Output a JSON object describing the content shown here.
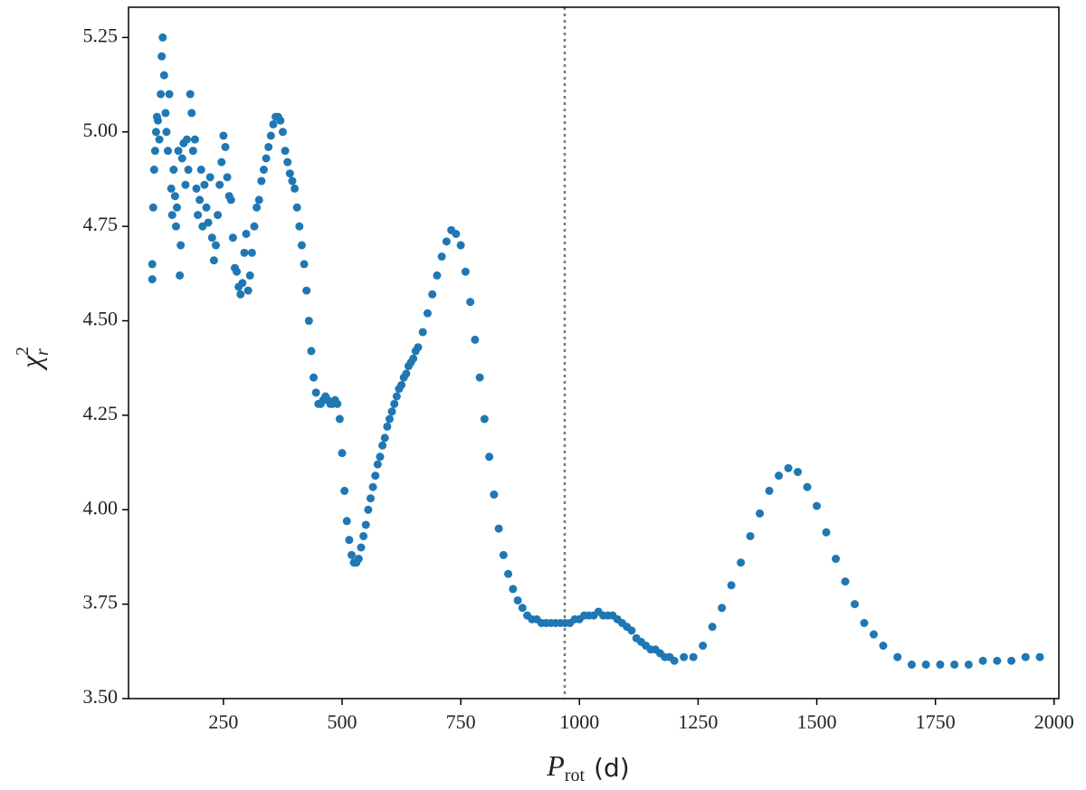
{
  "chart_data": {
    "type": "scatter",
    "xlabel": {
      "symbol": "P",
      "subscript": "rot",
      "unit": "(d)"
    },
    "ylabel": {
      "symbol": "χ",
      "superscript": "2",
      "subscript": "r"
    },
    "color": "#1f77b4",
    "vline": 969,
    "xlim": [
      50,
      2010
    ],
    "ylim": [
      3.5,
      5.33
    ],
    "xticks": [
      250,
      500,
      750,
      1000,
      1250,
      1500,
      1750,
      2000
    ],
    "yticks": [
      {
        "value": 3.5,
        "label": "3.50"
      },
      3.75,
      {
        "value": 4,
        "label": "4.00"
      },
      4.25,
      {
        "value": 4.5,
        "label": "4.50"
      },
      4.75,
      {
        "value": 5,
        "label": "5.00"
      },
      5.25
    ],
    "grid": false,
    "x": [
      100,
      100,
      102,
      104,
      106,
      108,
      110,
      112,
      115,
      118,
      120,
      122,
      125,
      128,
      130,
      133,
      136,
      140,
      142,
      145,
      148,
      150,
      152,
      155,
      158,
      160,
      163,
      166,
      170,
      173,
      176,
      180,
      183,
      186,
      190,
      193,
      196,
      200,
      203,
      206,
      210,
      214,
      218,
      222,
      226,
      230,
      234,
      238,
      242,
      246,
      250,
      254,
      258,
      262,
      266,
      270,
      274,
      278,
      282,
      286,
      290,
      294,
      298,
      302,
      306,
      310,
      315,
      320,
      325,
      330,
      335,
      340,
      345,
      350,
      355,
      360,
      365,
      370,
      375,
      380,
      385,
      390,
      395,
      400,
      405,
      410,
      415,
      420,
      425,
      430,
      435,
      440,
      445,
      450,
      455,
      460,
      465,
      470,
      475,
      480,
      485,
      490,
      495,
      500,
      505,
      510,
      515,
      520,
      525,
      530,
      535,
      540,
      545,
      550,
      555,
      560,
      565,
      570,
      575,
      580,
      585,
      590,
      595,
      600,
      605,
      610,
      615,
      620,
      625,
      630,
      635,
      640,
      645,
      650,
      655,
      660,
      670,
      680,
      690,
      700,
      710,
      720,
      730,
      740,
      750,
      760,
      770,
      780,
      790,
      800,
      810,
      820,
      830,
      840,
      850,
      860,
      870,
      880,
      890,
      900,
      910,
      920,
      930,
      940,
      950,
      960,
      970,
      980,
      990,
      1000,
      1010,
      1020,
      1030,
      1040,
      1050,
      1060,
      1070,
      1080,
      1090,
      1100,
      1110,
      1120,
      1130,
      1140,
      1150,
      1160,
      1170,
      1180,
      1190,
      1200,
      1220,
      1240,
      1260,
      1280,
      1300,
      1320,
      1340,
      1360,
      1380,
      1400,
      1420,
      1440,
      1460,
      1480,
      1500,
      1520,
      1540,
      1560,
      1580,
      1600,
      1620,
      1640,
      1670,
      1700,
      1730,
      1760,
      1790,
      1820,
      1850,
      1880,
      1910,
      1940,
      1970
    ],
    "y": [
      4.61,
      4.65,
      4.8,
      4.9,
      4.95,
      5.0,
      5.04,
      5.03,
      4.98,
      5.1,
      5.2,
      5.25,
      5.15,
      5.05,
      5.0,
      4.95,
      5.1,
      4.85,
      4.78,
      4.9,
      4.83,
      4.75,
      4.8,
      4.95,
      4.62,
      4.7,
      4.93,
      4.97,
      4.86,
      4.98,
      4.9,
      5.1,
      5.05,
      4.95,
      4.98,
      4.85,
      4.78,
      4.82,
      4.9,
      4.75,
      4.86,
      4.8,
      4.76,
      4.88,
      4.72,
      4.66,
      4.7,
      4.78,
      4.86,
      4.92,
      4.99,
      4.96,
      4.88,
      4.83,
      4.82,
      4.72,
      4.64,
      4.63,
      4.59,
      4.57,
      4.6,
      4.68,
      4.73,
      4.58,
      4.62,
      4.68,
      4.75,
      4.8,
      4.82,
      4.87,
      4.9,
      4.93,
      4.96,
      4.99,
      5.02,
      5.04,
      5.04,
      5.03,
      5.0,
      4.95,
      4.92,
      4.89,
      4.87,
      4.85,
      4.8,
      4.75,
      4.7,
      4.65,
      4.58,
      4.5,
      4.42,
      4.35,
      4.31,
      4.28,
      4.28,
      4.29,
      4.3,
      4.29,
      4.28,
      4.28,
      4.29,
      4.28,
      4.24,
      4.15,
      4.05,
      3.97,
      3.92,
      3.88,
      3.86,
      3.86,
      3.87,
      3.9,
      3.93,
      3.96,
      4.0,
      4.03,
      4.06,
      4.09,
      4.12,
      4.14,
      4.17,
      4.19,
      4.22,
      4.24,
      4.26,
      4.28,
      4.3,
      4.32,
      4.33,
      4.35,
      4.36,
      4.38,
      4.39,
      4.4,
      4.42,
      4.43,
      4.47,
      4.52,
      4.57,
      4.62,
      4.67,
      4.71,
      4.74,
      4.73,
      4.7,
      4.63,
      4.55,
      4.45,
      4.35,
      4.24,
      4.14,
      4.04,
      3.95,
      3.88,
      3.83,
      3.79,
      3.76,
      3.74,
      3.72,
      3.71,
      3.71,
      3.7,
      3.7,
      3.7,
      3.7,
      3.7,
      3.7,
      3.7,
      3.71,
      3.71,
      3.72,
      3.72,
      3.72,
      3.73,
      3.72,
      3.72,
      3.72,
      3.71,
      3.7,
      3.69,
      3.68,
      3.66,
      3.65,
      3.64,
      3.63,
      3.63,
      3.62,
      3.61,
      3.61,
      3.6,
      3.61,
      3.61,
      3.64,
      3.69,
      3.74,
      3.8,
      3.86,
      3.93,
      3.99,
      4.05,
      4.09,
      4.11,
      4.1,
      4.06,
      4.01,
      3.94,
      3.87,
      3.81,
      3.75,
      3.7,
      3.67,
      3.64,
      3.61,
      3.59,
      3.59,
      3.59,
      3.59,
      3.59,
      3.6,
      3.6,
      3.6,
      3.61,
      3.61
    ]
  }
}
